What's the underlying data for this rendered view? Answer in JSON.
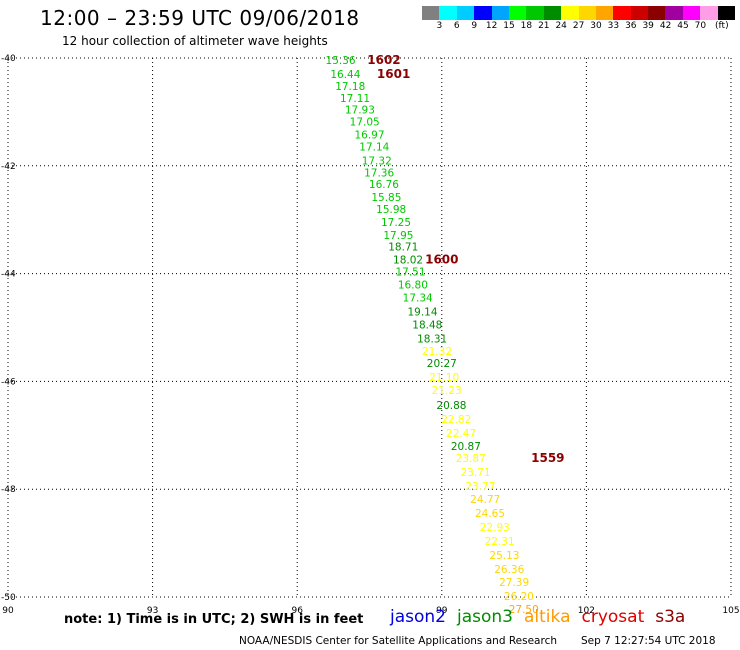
{
  "header": {
    "title": "12:00 – 23:59 UTC 09/06/2018",
    "subtitle": "12 hour collection of altimeter wave heights"
  },
  "legend": {
    "colors": [
      "#808080",
      "#00ffff",
      "#00cdff",
      "#0000ff",
      "#00a5ff",
      "#00ff00",
      "#00c800",
      "#008c00",
      "#ffff00",
      "#ffd700",
      "#ffa500",
      "#ff0000",
      "#cd0000",
      "#8b0000",
      "#a000a0",
      "#ff00ff",
      "#ff9ee6",
      "#000000"
    ],
    "labels": [
      "3",
      "6",
      "9",
      "12",
      "15",
      "18",
      "21",
      "24",
      "27",
      "30",
      "33",
      "36",
      "39",
      "42",
      "45",
      "70",
      "(ft)"
    ]
  },
  "note": "note: 1) Time is in UTC; 2) SWH is in feet",
  "satellites": [
    {
      "name": "jason2",
      "color": "#0000dd"
    },
    {
      "name": "jason3",
      "color": "#008c00"
    },
    {
      "name": "altika",
      "color": "#ff9900"
    },
    {
      "name": "cryosat",
      "color": "#dd0000"
    },
    {
      "name": "s3a",
      "color": "#8b0000"
    }
  ],
  "footer": {
    "credit": "NOAA/NESDIS Center for Satellite Applications and Research",
    "timestamp": "Sep  7 12:27:54 UTC 2018"
  },
  "chart_data": {
    "type": "scatter",
    "x_axis": {
      "range": [
        90,
        105
      ],
      "ticks": [
        90,
        93,
        96,
        99,
        102,
        105
      ]
    },
    "y_axis": {
      "range": [
        -50,
        -40
      ],
      "ticks": [
        -40,
        -42,
        -44,
        -46,
        -48,
        -50
      ]
    },
    "grid": true,
    "series": [
      {
        "satellite": "jason3",
        "points": [
          {
            "lon": 96.9,
            "lat": -40.04,
            "swh": "15.36",
            "color": "#00c800"
          },
          {
            "lon": 97.0,
            "lat": -40.3,
            "swh": "16.44",
            "color": "#00c800"
          },
          {
            "lon": 97.1,
            "lat": -40.52,
            "swh": "17.18",
            "color": "#00c800"
          },
          {
            "lon": 97.2,
            "lat": -40.74,
            "swh": "17.11",
            "color": "#00c800"
          },
          {
            "lon": 97.3,
            "lat": -40.96,
            "swh": "17.93",
            "color": "#00c800"
          },
          {
            "lon": 97.4,
            "lat": -41.18,
            "swh": "17.05",
            "color": "#00c800"
          },
          {
            "lon": 97.5,
            "lat": -41.42,
            "swh": "16.97",
            "color": "#00c800"
          },
          {
            "lon": 97.6,
            "lat": -41.64,
            "swh": "17.14",
            "color": "#00c800"
          },
          {
            "lon": 97.65,
            "lat": -41.9,
            "swh": "17.32",
            "color": "#00c800"
          },
          {
            "lon": 97.7,
            "lat": -42.12,
            "swh": "17.36",
            "color": "#00c800"
          },
          {
            "lon": 97.8,
            "lat": -42.34,
            "swh": "16.76",
            "color": "#00c800"
          },
          {
            "lon": 97.85,
            "lat": -42.58,
            "swh": "15.85",
            "color": "#00c800"
          },
          {
            "lon": 97.95,
            "lat": -42.8,
            "swh": "15.98",
            "color": "#00c800"
          },
          {
            "lon": 98.05,
            "lat": -43.04,
            "swh": "17.25",
            "color": "#00c800"
          },
          {
            "lon": 98.1,
            "lat": -43.28,
            "swh": "17.95",
            "color": "#00c800"
          },
          {
            "lon": 98.2,
            "lat": -43.5,
            "swh": "18.71",
            "color": "#008c00"
          },
          {
            "lon": 98.3,
            "lat": -43.74,
            "swh": "18.02",
            "color": "#008c00"
          },
          {
            "lon": 98.35,
            "lat": -43.96,
            "swh": "17.51",
            "color": "#00c800"
          },
          {
            "lon": 98.4,
            "lat": -44.2,
            "swh": "16.80",
            "color": "#00c800"
          },
          {
            "lon": 98.5,
            "lat": -44.44,
            "swh": "17.34",
            "color": "#00c800"
          },
          {
            "lon": 98.6,
            "lat": -44.7,
            "swh": "19.14",
            "color": "#008c00"
          },
          {
            "lon": 98.7,
            "lat": -44.94,
            "swh": "18.48",
            "color": "#008c00"
          },
          {
            "lon": 98.8,
            "lat": -45.2,
            "swh": "18.31",
            "color": "#008c00"
          },
          {
            "lon": 98.9,
            "lat": -45.44,
            "swh": "21.32",
            "color": "#ffff00"
          },
          {
            "lon": 99.0,
            "lat": -45.66,
            "swh": "20.27",
            "color": "#008c00"
          },
          {
            "lon": 99.05,
            "lat": -45.92,
            "swh": "21.10",
            "color": "#ffff00"
          },
          {
            "lon": 99.1,
            "lat": -46.16,
            "swh": "21.23",
            "color": "#ffff00"
          },
          {
            "lon": 99.2,
            "lat": -46.44,
            "swh": "20.88",
            "color": "#008c00"
          },
          {
            "lon": 99.3,
            "lat": -46.7,
            "swh": "22.82",
            "color": "#ffff00"
          },
          {
            "lon": 99.4,
            "lat": -46.96,
            "swh": "22.47",
            "color": "#ffff00"
          },
          {
            "lon": 99.5,
            "lat": -47.2,
            "swh": "20.87",
            "color": "#008c00"
          },
          {
            "lon": 99.6,
            "lat": -47.42,
            "swh": "23.87",
            "color": "#ffff00"
          },
          {
            "lon": 99.7,
            "lat": -47.68,
            "swh": "23.71",
            "color": "#ffff00"
          },
          {
            "lon": 99.8,
            "lat": -47.94,
            "swh": "23.77",
            "color": "#ffff00"
          },
          {
            "lon": 99.9,
            "lat": -48.18,
            "swh": "24.77",
            "color": "#ffd700"
          },
          {
            "lon": 100.0,
            "lat": -48.44,
            "swh": "24.65",
            "color": "#ffd700"
          },
          {
            "lon": 100.1,
            "lat": -48.7,
            "swh": "22.93",
            "color": "#ffff00"
          },
          {
            "lon": 100.2,
            "lat": -48.96,
            "swh": "22.31",
            "color": "#ffff00"
          },
          {
            "lon": 100.3,
            "lat": -49.22,
            "swh": "25.13",
            "color": "#ffd700"
          },
          {
            "lon": 100.4,
            "lat": -49.48,
            "swh": "26.36",
            "color": "#ffd700"
          },
          {
            "lon": 100.5,
            "lat": -49.72,
            "swh": "27.39",
            "color": "#ffd700"
          },
          {
            "lon": 100.6,
            "lat": -49.98,
            "swh": "26.20",
            "color": "#ffd700"
          },
          {
            "lon": 100.7,
            "lat": -50.22,
            "swh": "27.50",
            "color": "#ffa500"
          }
        ]
      }
    ],
    "time_labels": [
      {
        "text": "1602",
        "lon": 97.8,
        "lat": -40.04,
        "color": "#8b0000"
      },
      {
        "text": "1601",
        "lon": 98.0,
        "lat": -40.3,
        "color": "#8b0000"
      },
      {
        "text": "1600",
        "lon": 99.0,
        "lat": -43.74,
        "color": "#8b0000"
      },
      {
        "text": "1559",
        "lon": 101.2,
        "lat": -47.42,
        "color": "#8b0000"
      }
    ]
  }
}
